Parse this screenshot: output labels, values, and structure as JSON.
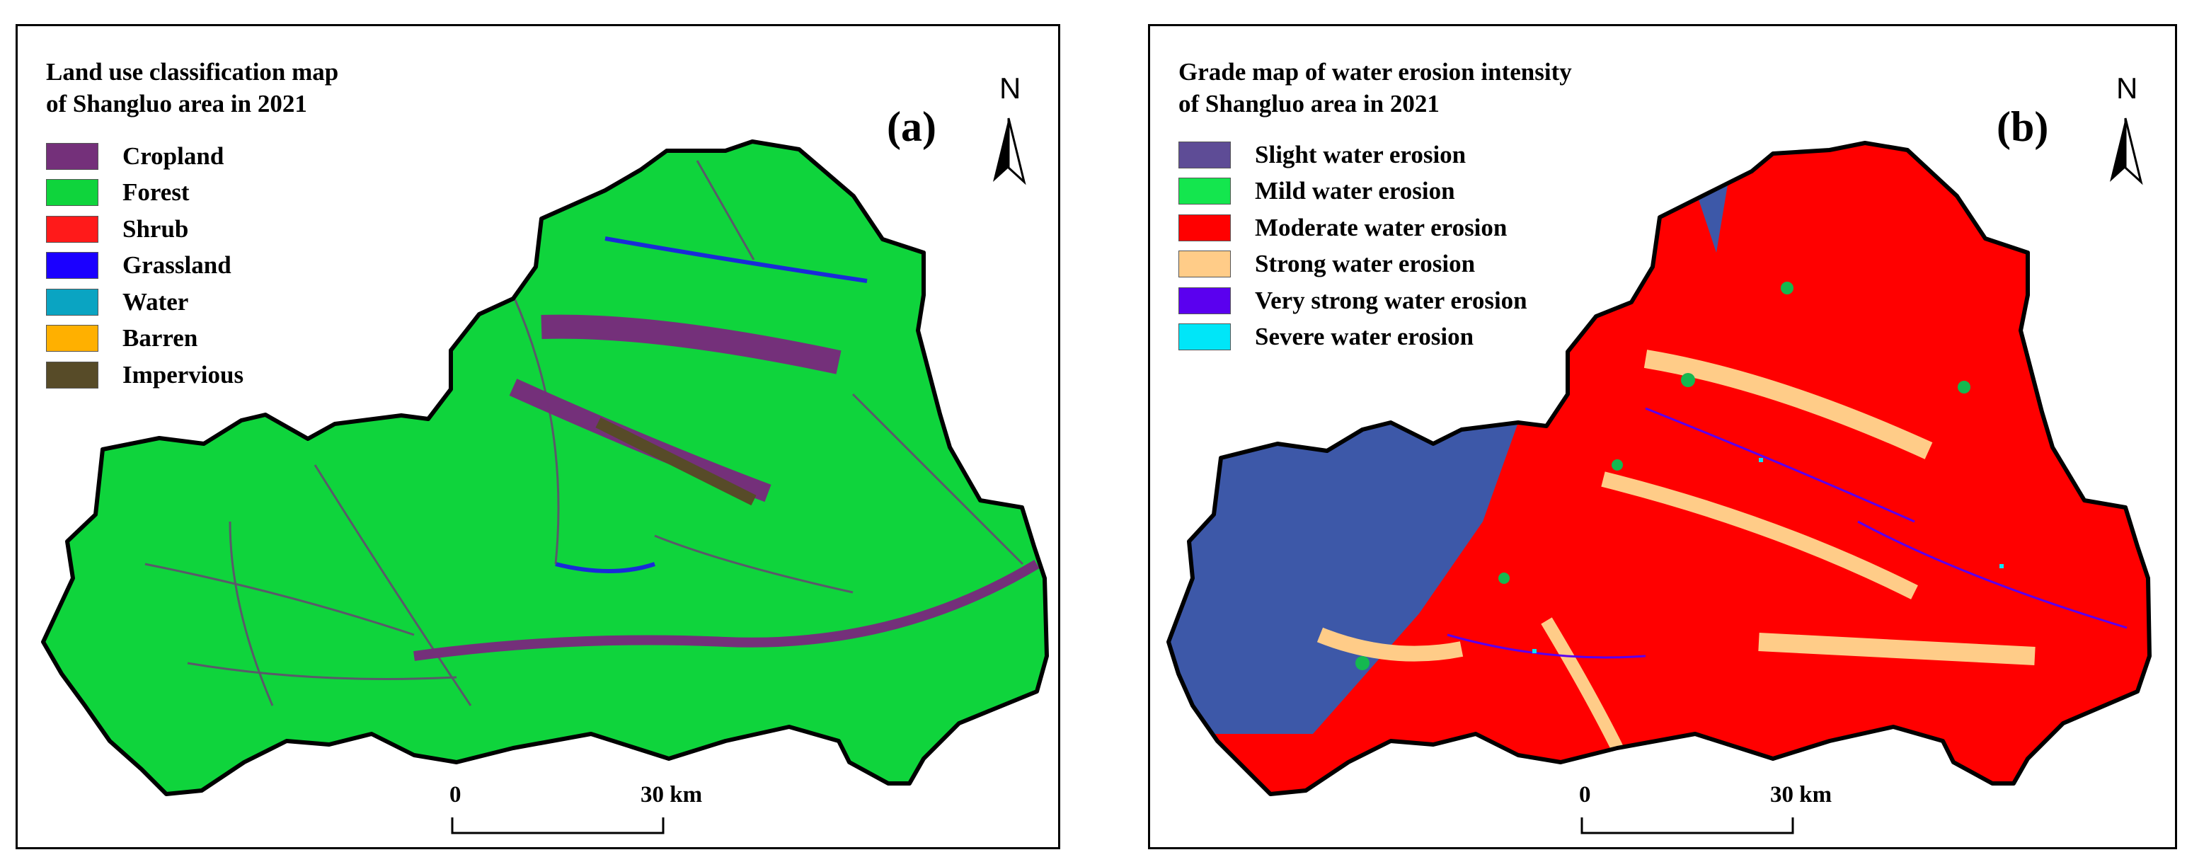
{
  "panel_a": {
    "title_line1": "Land use classification map",
    "title_line2": "of Shangluo area in 2021",
    "panel_label": "(a)",
    "north_label": "N",
    "scale": {
      "zero": "0",
      "end": "30 km"
    },
    "legend": [
      {
        "label": "Cropland",
        "color": "#74307a"
      },
      {
        "label": "Forest",
        "color": "#0fd43c"
      },
      {
        "label": "Shrub",
        "color": "#ff1a1a"
      },
      {
        "label": "Grassland",
        "color": "#1b00ff"
      },
      {
        "label": "Water",
        "color": "#0aa4c2"
      },
      {
        "label": "Barren",
        "color": "#ffb000"
      },
      {
        "label": "Impervious",
        "color": "#574b28"
      }
    ]
  },
  "panel_b": {
    "title_line1": "Grade map of water erosion intensity",
    "title_line2": "of Shangluo area in 2021",
    "panel_label": "(b)",
    "north_label": "N",
    "scale": {
      "zero": "0",
      "end": "30 km"
    },
    "legend": [
      {
        "label": "Slight water erosion",
        "color": "#5e4c96"
      },
      {
        "label": "Mild water erosion",
        "color": "#14e64e"
      },
      {
        "label": "Moderate water erosion",
        "color": "#ff0000"
      },
      {
        "label": "Strong water erosion",
        "color": "#ffcc88"
      },
      {
        "label": "Very strong water erosion",
        "color": "#5a00ef"
      },
      {
        "label": "Severe water erosion",
        "color": "#00e6f8"
      }
    ]
  }
}
